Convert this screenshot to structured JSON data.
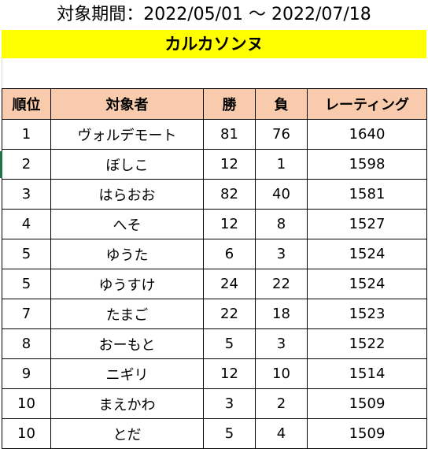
{
  "period": "対象期間：2022/05/01 ～ 2022/07/18",
  "group_title": "カルカソンヌ",
  "colors": {
    "banner": "#ffff00",
    "header": "#f8cbad"
  },
  "table": {
    "headers": {
      "rank": "順位",
      "name": "対象者",
      "wins": "勝",
      "losses": "負",
      "rating": "レーティング"
    },
    "rows": [
      {
        "rank": "1",
        "name": "ヴォルデモート",
        "wins": "81",
        "losses": "76",
        "rating": "1640"
      },
      {
        "rank": "2",
        "name": "ぼしこ",
        "wins": "12",
        "losses": "1",
        "rating": "1598"
      },
      {
        "rank": "3",
        "name": "はらおお",
        "wins": "82",
        "losses": "40",
        "rating": "1581"
      },
      {
        "rank": "4",
        "name": "へそ",
        "wins": "12",
        "losses": "8",
        "rating": "1527"
      },
      {
        "rank": "5",
        "name": "ゆうた",
        "wins": "6",
        "losses": "3",
        "rating": "1524"
      },
      {
        "rank": "5",
        "name": "ゆうすけ",
        "wins": "24",
        "losses": "22",
        "rating": "1524"
      },
      {
        "rank": "7",
        "name": "たまご",
        "wins": "22",
        "losses": "18",
        "rating": "1523"
      },
      {
        "rank": "8",
        "name": "おーもと",
        "wins": "5",
        "losses": "3",
        "rating": "1522"
      },
      {
        "rank": "9",
        "name": "ニギリ",
        "wins": "12",
        "losses": "10",
        "rating": "1514"
      },
      {
        "rank": "10",
        "name": "まえかわ",
        "wins": "3",
        "losses": "2",
        "rating": "1509"
      },
      {
        "rank": "10",
        "name": "とだ",
        "wins": "5",
        "losses": "4",
        "rating": "1509"
      }
    ]
  }
}
